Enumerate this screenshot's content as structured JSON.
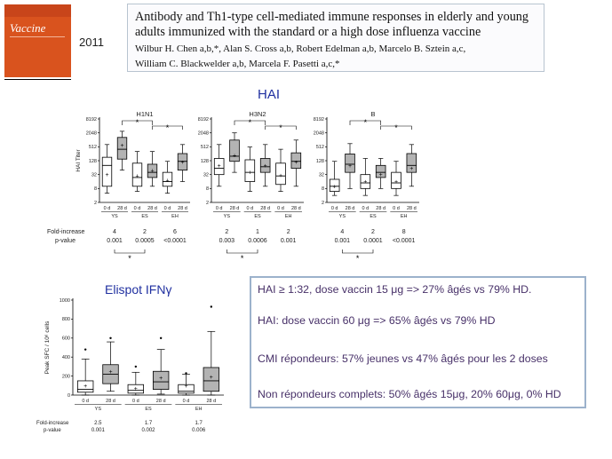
{
  "journal": {
    "cover_title": "Vaccine",
    "year": "2011"
  },
  "article": {
    "title_line1": "Antibody and Th1-type cell-mediated immune responses in elderly and young",
    "title_line2": "adults immunized with the standard or a high dose influenza vaccine",
    "authors_line1": "Wilbur H. Chen a,b,*, Alan S. Cross a,b, Robert Edelman a,b, Marcelo B. Sztein a,c,",
    "authors_line2": "William C. Blackwelder a,b, Marcela F. Pasetti a,c,*"
  },
  "hai": {
    "title": "HAI",
    "ylabel": "HAI Titer",
    "yticks": [
      "8192",
      "2048",
      "512",
      "128",
      "32",
      "8",
      "2"
    ],
    "row_labels": {
      "fold": "Fold-increase",
      "pvalue": "p-value"
    },
    "x_sub": [
      "0 d",
      "28 d",
      "0 d",
      "28 d",
      "0 d",
      "28 d"
    ],
    "groups": [
      "YS",
      "ES",
      "EH"
    ]
  },
  "elispot": {
    "title": "Elispot IFNγ",
    "ylabel": "Peak SFC / 10⁶ cells",
    "yticks": [
      "1000",
      "800",
      "600",
      "400",
      "200",
      "0"
    ]
  },
  "summary": {
    "lines": [
      "HAI ≥ 1:32, dose vaccin 15 μg => 27% âgés vs 79% HD.",
      "HAI: dose vaccin 60 μg => 65% âgés vs 79% HD",
      "CMI répondeurs: 57% jeunes vs 47% âgés pour les 2 doses",
      "Non répondeurs complets: 50% âgés 15μg, 20% 60μg, 0% HD"
    ]
  },
  "chart_data": [
    {
      "type": "box",
      "title": "H1N1",
      "ylabel": "HAI Titer",
      "scale": "log2",
      "yticks": [
        2,
        8,
        32,
        128,
        512,
        2048,
        8192
      ],
      "categories": [
        "YS 0 d",
        "YS 28 d",
        "ES 0 d",
        "ES 28 d",
        "EH 0 d",
        "EH 28 d"
      ],
      "boxes": [
        {
          "min": 5,
          "q1": 10,
          "median": 80,
          "q3": 180,
          "max": 640,
          "mean": 32
        },
        {
          "min": 50,
          "q1": 150,
          "median": 400,
          "q3": 1300,
          "max": 2400,
          "mean": 600
        },
        {
          "min": 6,
          "q1": 10,
          "median": 24,
          "q3": 100,
          "max": 320,
          "mean": 28
        },
        {
          "min": 10,
          "q1": 24,
          "median": 40,
          "q3": 90,
          "max": 320,
          "mean": 48
        },
        {
          "min": 5,
          "q1": 10,
          "median": 16,
          "q3": 40,
          "max": 120,
          "mean": 18
        },
        {
          "min": 16,
          "q1": 50,
          "median": 120,
          "q3": 260,
          "max": 640,
          "mean": 110
        }
      ],
      "fold_increase": [
        "4",
        "2",
        "6"
      ],
      "p_values": [
        "0.001",
        "0.0005",
        "<0.0001"
      ]
    },
    {
      "type": "box",
      "title": "H3N2",
      "ylabel": "HAI Titer",
      "scale": "log2",
      "yticks": [
        2,
        8,
        32,
        128,
        512,
        2048,
        8192
      ],
      "categories": [
        "YS 0 d",
        "YS 28 d",
        "ES 0 d",
        "ES 28 d",
        "EH 0 d",
        "EH 28 d"
      ],
      "boxes": [
        {
          "min": 10,
          "q1": 32,
          "median": 60,
          "q3": 160,
          "max": 640,
          "mean": 80
        },
        {
          "min": 40,
          "q1": 120,
          "median": 200,
          "q3": 1000,
          "max": 2048,
          "mean": 220
        },
        {
          "min": 6,
          "q1": 16,
          "median": 40,
          "q3": 140,
          "max": 500,
          "mean": 40
        },
        {
          "min": 10,
          "q1": 40,
          "median": 70,
          "q3": 160,
          "max": 640,
          "mean": 80
        },
        {
          "min": 6,
          "q1": 12,
          "median": 28,
          "q3": 100,
          "max": 400,
          "mean": 30
        },
        {
          "min": 10,
          "q1": 60,
          "median": 120,
          "q3": 280,
          "max": 1000,
          "mean": 110
        }
      ],
      "fold_increase": [
        "2",
        "1",
        "2"
      ],
      "p_values": [
        "0.003",
        "0.0006",
        "0.001"
      ]
    },
    {
      "type": "box",
      "title": "B",
      "ylabel": "HAI Titer",
      "scale": "log2",
      "yticks": [
        2,
        8,
        32,
        128,
        512,
        2048,
        8192
      ],
      "categories": [
        "YS 0 d",
        "YS 28 d",
        "ES 0 d",
        "ES 28 d",
        "EH 0 d",
        "EH 28 d"
      ],
      "boxes": [
        {
          "min": 4,
          "q1": 6,
          "median": 10,
          "q3": 20,
          "max": 120,
          "mean": 10
        },
        {
          "min": 8,
          "q1": 40,
          "median": 90,
          "q3": 250,
          "max": 700,
          "mean": 80
        },
        {
          "min": 4,
          "q1": 8,
          "median": 14,
          "q3": 32,
          "max": 160,
          "mean": 16
        },
        {
          "min": 8,
          "q1": 24,
          "median": 40,
          "q3": 80,
          "max": 160,
          "mean": 32
        },
        {
          "min": 4,
          "q1": 8,
          "median": 14,
          "q3": 40,
          "max": 120,
          "mean": 16
        },
        {
          "min": 10,
          "q1": 40,
          "median": 80,
          "q3": 260,
          "max": 640,
          "mean": 60
        }
      ],
      "fold_increase": [
        "4",
        "2",
        "8"
      ],
      "p_values": [
        "0.001",
        "0.0001",
        "<0.0001"
      ]
    },
    {
      "type": "box",
      "title": "",
      "ylabel": "Peak SFC / 10⁶ cells",
      "scale": "linear",
      "ylim": [
        0,
        1000
      ],
      "yticks": [
        0,
        200,
        400,
        600,
        800,
        1000
      ],
      "categories": [
        "YS 0 d",
        "YS 28 d",
        "ES 0 d",
        "ES 28 d",
        "EH 0 d",
        "EH 28 d"
      ],
      "boxes": [
        {
          "min": 0,
          "q1": 30,
          "median": 60,
          "q3": 150,
          "max": 380,
          "mean": 100
        },
        {
          "min": 40,
          "q1": 120,
          "median": 220,
          "q3": 320,
          "max": 560,
          "mean": 250
        },
        {
          "min": 0,
          "q1": 20,
          "median": 50,
          "q3": 110,
          "max": 240,
          "mean": 70
        },
        {
          "min": 10,
          "q1": 60,
          "median": 140,
          "q3": 250,
          "max": 480,
          "mean": 180
        },
        {
          "min": 0,
          "q1": 20,
          "median": 40,
          "q3": 110,
          "max": 220,
          "mean": 100
        },
        {
          "min": 0,
          "q1": 40,
          "median": 150,
          "q3": 290,
          "max": 670,
          "mean": 190
        }
      ],
      "outliers": [
        [
          480
        ],
        [
          600
        ],
        [
          300
        ],
        [
          600
        ],
        [
          230
        ],
        [
          930
        ]
      ],
      "fold_increase": [
        "2.5",
        "1.7",
        "1.7"
      ],
      "p_values": [
        "0.001",
        "0.002",
        "0.006"
      ]
    }
  ]
}
